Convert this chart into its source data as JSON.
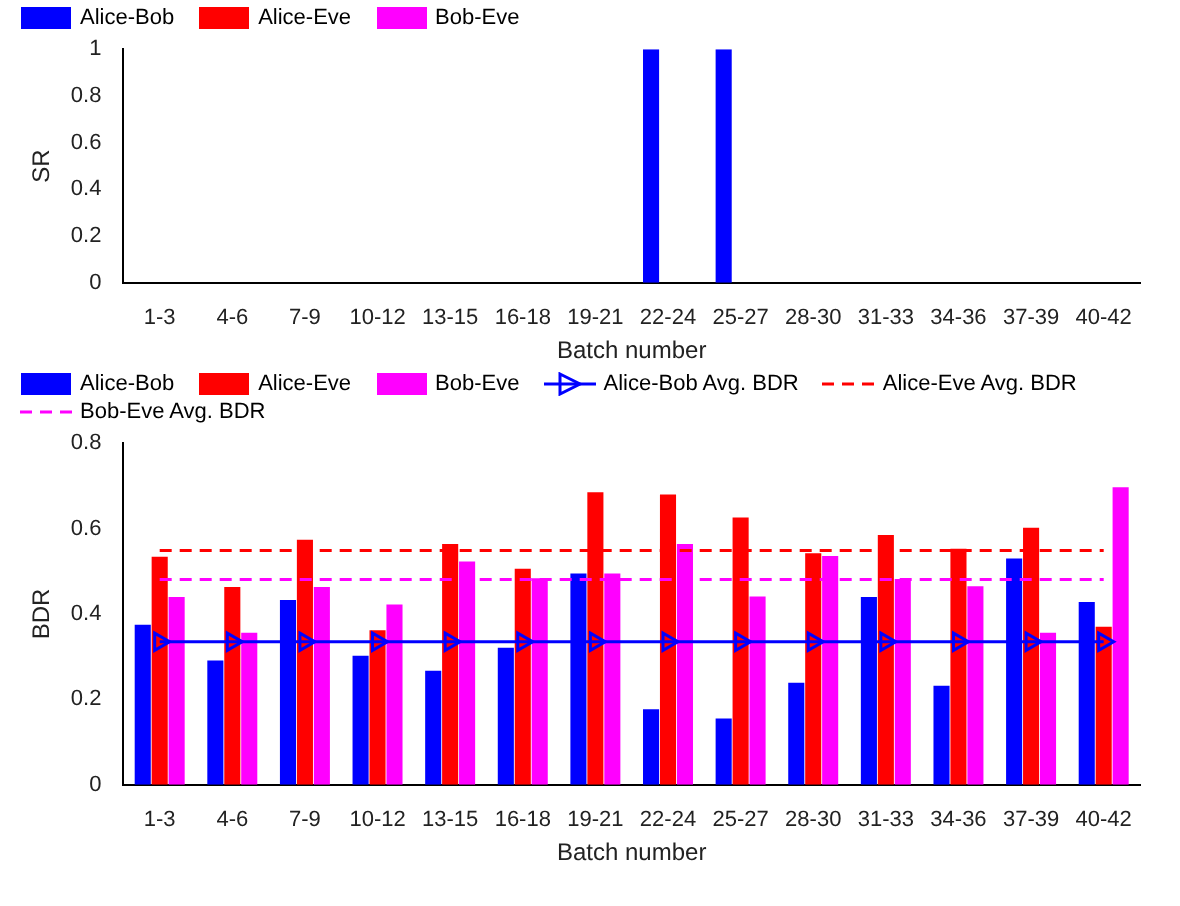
{
  "chart_data": [
    {
      "type": "bar",
      "categories": [
        "1-3",
        "4-6",
        "7-9",
        "10-12",
        "13-15",
        "16-18",
        "19-21",
        "22-24",
        "25-27",
        "28-30",
        "31-33",
        "34-36",
        "37-39",
        "40-42"
      ],
      "xlabel": "Batch number",
      "ylabel": "SR",
      "ylim": [
        0,
        1
      ],
      "yticks": [
        0,
        0.2,
        0.4,
        0.6,
        0.8,
        1
      ],
      "grid": false,
      "legend": "top left",
      "series": [
        {
          "name": "Alice-Bob",
          "color": "#0000ff",
          "values": [
            0,
            0,
            0,
            0,
            0,
            0,
            0,
            1,
            1,
            0,
            0,
            0,
            0,
            0
          ]
        },
        {
          "name": "Alice-Eve",
          "color": "#ff0000",
          "values": [
            0,
            0,
            0,
            0,
            0,
            0,
            0,
            0,
            0,
            0,
            0,
            0,
            0,
            0
          ]
        },
        {
          "name": "Bob-Eve",
          "color": "#ff00ff",
          "values": [
            0,
            0,
            0,
            0,
            0,
            0,
            0,
            0,
            0,
            0,
            0,
            0,
            0,
            0
          ]
        }
      ]
    },
    {
      "type": "bar",
      "categories": [
        "1-3",
        "4-6",
        "7-9",
        "10-12",
        "13-15",
        "16-18",
        "19-21",
        "22-24",
        "25-27",
        "28-30",
        "31-33",
        "34-36",
        "37-39",
        "40-42"
      ],
      "xlabel": "Batch number",
      "ylabel": "BDR",
      "ylim": [
        0,
        0.8
      ],
      "yticks": [
        0,
        0.2,
        0.4,
        0.6,
        0.8
      ],
      "grid": false,
      "legend": "top left",
      "series": [
        {
          "name": "Alice-Bob",
          "color": "#0000ff",
          "values": [
            0.375,
            0.291,
            0.433,
            0.302,
            0.267,
            0.321,
            0.495,
            0.177,
            0.155,
            0.239,
            0.44,
            0.232,
            0.53,
            0.428
          ]
        },
        {
          "name": "Alice-Eve",
          "color": "#ff0000",
          "values": [
            0.534,
            0.463,
            0.574,
            0.362,
            0.564,
            0.506,
            0.685,
            0.68,
            0.626,
            0.542,
            0.585,
            0.553,
            0.602,
            0.37
          ]
        },
        {
          "name": "Bob-Eve",
          "color": "#ff00ff",
          "values": [
            0.44,
            0.356,
            0.463,
            0.422,
            0.523,
            0.484,
            0.495,
            0.564,
            0.441,
            0.536,
            0.482,
            0.465,
            0.356,
            0.697
          ]
        },
        {
          "name": "Alice-Bob Avg. BDR",
          "type": "line",
          "color": "#0000ff",
          "marker": "triangle",
          "line_style": "solid",
          "values": [
            0.335,
            0.335,
            0.335,
            0.335,
            0.335,
            0.335,
            0.335,
            0.335,
            0.335,
            0.335,
            0.335,
            0.335,
            0.335,
            0.335
          ]
        },
        {
          "name": "Alice-Eve Avg. BDR",
          "type": "line",
          "color": "#ff0000",
          "marker": "none",
          "line_style": "dashed",
          "values": [
            0.549,
            0.549,
            0.549,
            0.549,
            0.549,
            0.549,
            0.549,
            0.549,
            0.549,
            0.549,
            0.549,
            0.549,
            0.549,
            0.549
          ]
        },
        {
          "name": "Bob-Eve Avg. BDR",
          "type": "line",
          "color": "#ff00ff",
          "marker": "none",
          "line_style": "dashed",
          "values": [
            0.481,
            0.481,
            0.481,
            0.481,
            0.481,
            0.481,
            0.481,
            0.481,
            0.481,
            0.481,
            0.481,
            0.481,
            0.481,
            0.481
          ]
        }
      ]
    }
  ]
}
